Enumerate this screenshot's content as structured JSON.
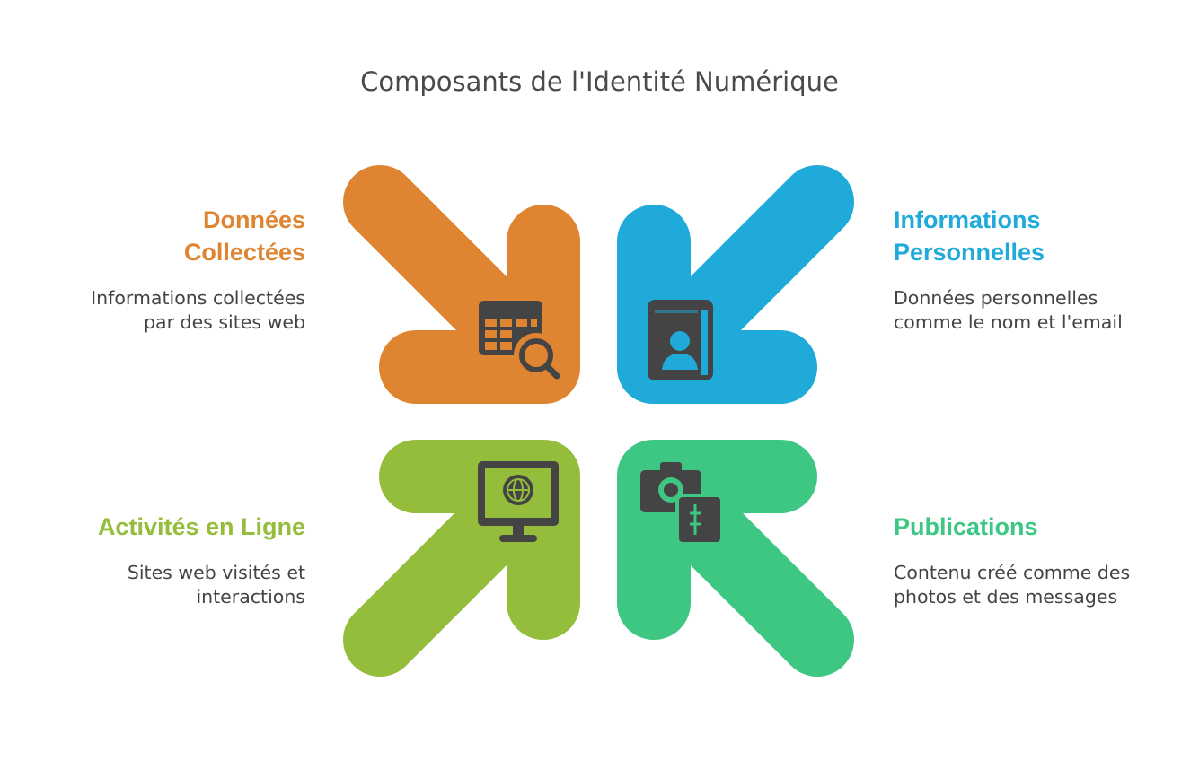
{
  "title": "Composants de l'Identité Numérique",
  "colors": {
    "orange": "#DF8430",
    "blue": "#1FAAD9",
    "green": "#93BD3A",
    "teal": "#3DC783",
    "icon": "#444444",
    "text": "#444444"
  },
  "components": {
    "collected": {
      "heading": [
        "Données",
        "Collectées"
      ],
      "description": [
        "Informations collectées",
        "par des sites web"
      ],
      "icon": "table-search-icon"
    },
    "personal": {
      "heading": [
        "Informations",
        "Personnelles"
      ],
      "description": [
        "Données personnelles",
        "comme le nom et l'email"
      ],
      "icon": "contact-book-icon"
    },
    "online": {
      "heading": [
        "Activités en Ligne"
      ],
      "description": [
        "Sites web visités et",
        "interactions"
      ],
      "icon": "monitor-globe-icon"
    },
    "posts": {
      "heading": [
        "Publications"
      ],
      "description": [
        "Contenu créé comme des",
        "photos et des messages"
      ],
      "icon": "camera-note-icon"
    }
  }
}
